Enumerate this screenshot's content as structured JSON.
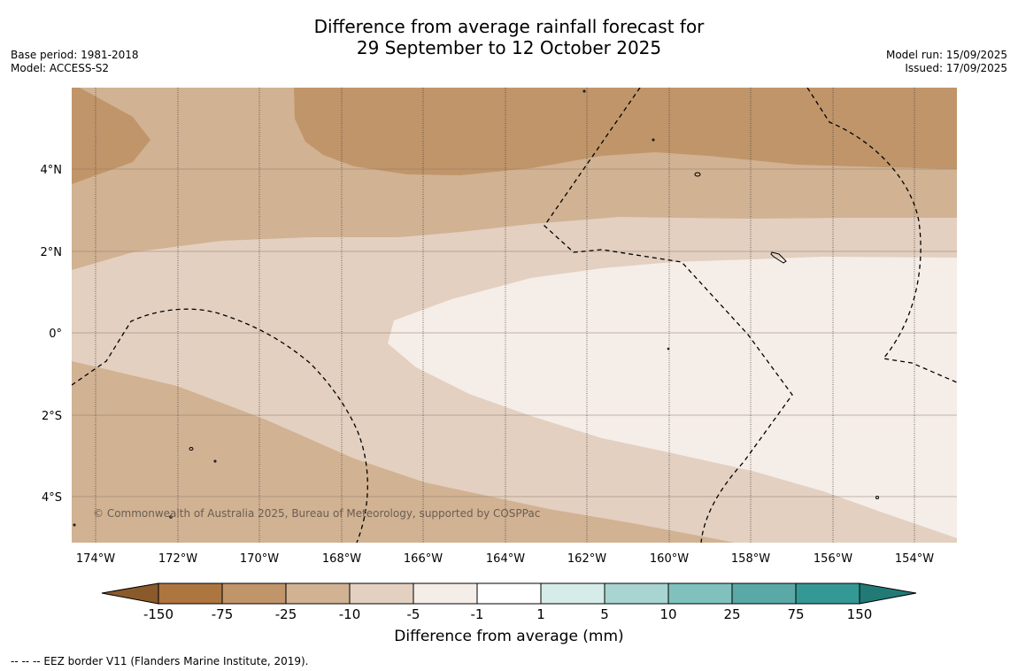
{
  "header": {
    "title_line1": "Difference from average rainfall forecast for",
    "title_line2": "29 September to 12 October 2025",
    "base_period": "Base period: 1981-2018",
    "model": "Model: ACCESS-S2",
    "model_run": "Model run: 15/09/2025",
    "issued": "Issued: 17/09/2025"
  },
  "map": {
    "lon_labels": [
      "174°W",
      "172°W",
      "170°W",
      "168°W",
      "166°W",
      "164°W",
      "162°W",
      "160°W",
      "158°W",
      "156°W",
      "154°W"
    ],
    "lat_labels": [
      "4°N",
      "2°N",
      "0°",
      "2°S",
      "4°S"
    ],
    "copyright": "© Commonwealth of Australia 2025, Bureau of Meteorology, supported by COSPPac",
    "colors": {
      "below_150": "#8a5a2b",
      "c_150_75": "#ad7540",
      "c_75_25": "#c0956a",
      "c_25_10": "#d1b293",
      "c_10_5": "#e3d0c0",
      "c_5_1": "#f5ede8",
      "c_1_1": "#ffffff",
      "c_1_5": "#d6ece9",
      "c_5_10": "#a8d5d2",
      "c_10_25": "#80c1bd",
      "c_25_75": "#5ba9a6",
      "c_75_150": "#349894",
      "above_150": "#217a76"
    }
  },
  "colorbar": {
    "tick_labels": [
      "-150",
      "-75",
      "-25",
      "-10",
      "-5",
      "-1",
      "1",
      "5",
      "10",
      "25",
      "75",
      "150"
    ],
    "title": "Difference from average (mm)"
  },
  "legend_note": "--  --  -- EEZ border V11 (Flanders Marine Institute, 2019)."
}
